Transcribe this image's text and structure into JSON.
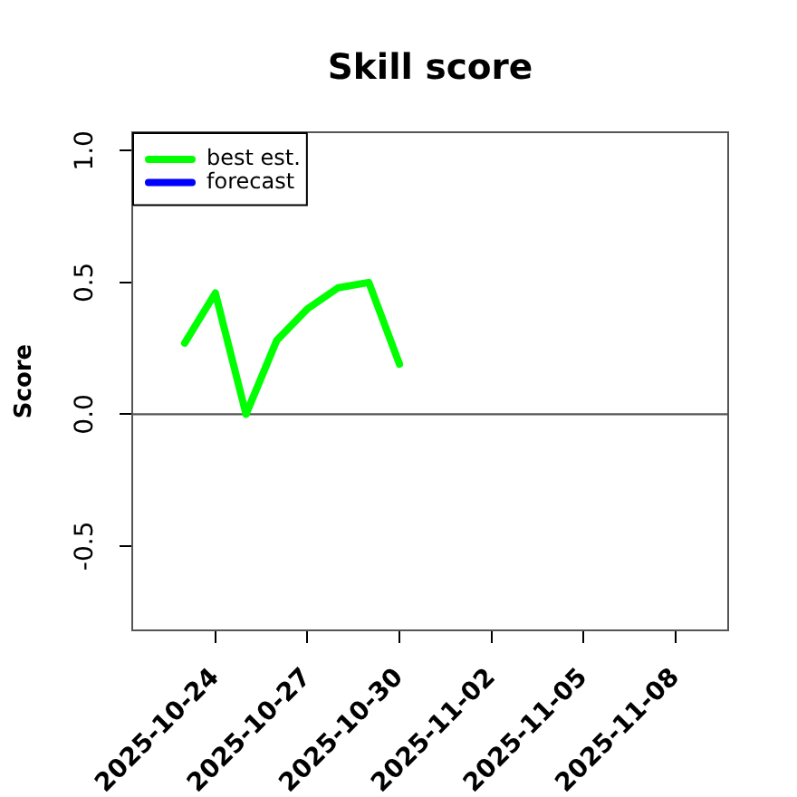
{
  "chart_data": {
    "type": "line",
    "title": "Skill score",
    "ylabel": "Score",
    "x": [
      "2025-10-23",
      "2025-10-24",
      "2025-10-25",
      "2025-10-26",
      "2025-10-27",
      "2025-10-28",
      "2025-10-29",
      "2025-10-30"
    ],
    "series": [
      {
        "name": "best est.",
        "color": "#00ff00",
        "values": [
          0.27,
          0.46,
          0.0,
          0.28,
          0.4,
          0.48,
          0.5,
          0.19
        ]
      },
      {
        "name": "forecast",
        "color": "#0000ff",
        "values": [
          null,
          null,
          null,
          null,
          null,
          null,
          null,
          null
        ]
      }
    ],
    "xlim": [
      "2025-10-21T07:00",
      "2025-11-09T17:00"
    ],
    "xticks": [
      "2025-10-24",
      "2025-10-27",
      "2025-10-30",
      "2025-11-02",
      "2025-11-05",
      "2025-11-08"
    ],
    "ylim": [
      -0.82,
      1.07
    ],
    "yticks": [
      -0.5,
      {
        "value": 0,
        "label": "0.0"
      },
      0.5,
      {
        "value": 1,
        "label": "1.0"
      }
    ],
    "ref_lines": [
      {
        "axis": "y",
        "value": 0,
        "color": "#555555"
      }
    ],
    "grid": false,
    "legend": "top left",
    "marker": "none",
    "line_style": "solid"
  }
}
